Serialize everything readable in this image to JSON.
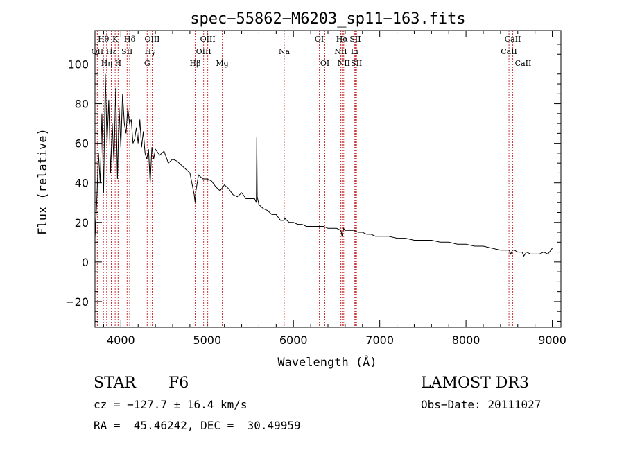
{
  "chart_data": {
    "type": "line",
    "title": "spec−55862−M6203_sp11−163.fits",
    "xlabel": "Wavelength (Å)",
    "ylabel": "Flux (relative)",
    "xlim": [
      3700,
      9100
    ],
    "ylim": [
      -33,
      117
    ],
    "xticks": [
      4000,
      5000,
      6000,
      7000,
      8000,
      9000
    ],
    "yticks": [
      -20,
      0,
      20,
      40,
      60,
      80,
      100
    ],
    "ytick_labels": [
      "−20",
      "0",
      "20",
      "40",
      "60",
      "80",
      "100"
    ],
    "series": [
      {
        "name": "spectrum",
        "x": [
          3700,
          3720,
          3740,
          3760,
          3780,
          3800,
          3820,
          3840,
          3860,
          3880,
          3900,
          3920,
          3940,
          3960,
          3980,
          4000,
          4020,
          4040,
          4060,
          4080,
          4100,
          4120,
          4140,
          4160,
          4180,
          4200,
          4220,
          4240,
          4260,
          4280,
          4300,
          4320,
          4340,
          4360,
          4380,
          4400,
          4450,
          4500,
          4550,
          4600,
          4650,
          4700,
          4750,
          4800,
          4850,
          4860,
          4870,
          4900,
          4950,
          5000,
          5050,
          5100,
          5150,
          5200,
          5250,
          5300,
          5350,
          5400,
          5450,
          5500,
          5550,
          5570,
          5575,
          5580,
          5600,
          5650,
          5700,
          5750,
          5800,
          5850,
          5890,
          5900,
          5950,
          6000,
          6050,
          6100,
          6150,
          6200,
          6250,
          6300,
          6350,
          6400,
          6450,
          6500,
          6550,
          6563,
          6580,
          6600,
          6650,
          6700,
          6750,
          6800,
          6850,
          6870,
          6900,
          6950,
          7000,
          7100,
          7200,
          7300,
          7400,
          7500,
          7600,
          7700,
          7800,
          7900,
          8000,
          8100,
          8200,
          8300,
          8400,
          8500,
          8520,
          8540,
          8560,
          8600,
          8650,
          8670,
          8700,
          8750,
          8800,
          8850,
          8900,
          8950,
          9000
        ],
        "y": [
          12,
          30,
          55,
          40,
          75,
          35,
          95,
          60,
          82,
          45,
          70,
          50,
          88,
          42,
          78,
          58,
          85,
          70,
          65,
          78,
          70,
          72,
          60,
          62,
          68,
          60,
          72,
          58,
          66,
          55,
          52,
          57,
          40,
          58,
          52,
          57,
          54,
          56,
          50,
          52,
          51,
          49,
          47,
          45,
          34,
          30,
          36,
          44,
          42,
          42,
          41,
          38,
          36,
          39,
          37,
          34,
          33,
          35,
          32,
          32,
          32,
          30,
          63,
          33,
          29,
          27,
          26,
          24,
          24,
          21,
          21,
          22,
          20,
          20,
          19,
          19,
          18,
          18,
          18,
          18,
          18,
          17,
          17,
          17,
          16,
          13,
          17,
          16,
          16,
          16,
          15,
          15,
          14,
          14,
          14,
          13,
          13,
          13,
          12,
          12,
          11,
          11,
          11,
          10,
          10,
          9,
          9,
          8,
          8,
          7,
          6,
          6,
          4,
          6,
          6,
          5,
          5,
          3,
          5,
          4,
          4,
          4,
          5,
          4,
          7
        ]
      }
    ],
    "spectral_lines": [
      {
        "label": "Hθ",
        "x": 3798,
        "row": 1
      },
      {
        "label": "K",
        "x": 3934,
        "row": 1
      },
      {
        "label": "Hδ",
        "x": 4102,
        "row": 1
      },
      {
        "label": "OIII",
        "x": 4363,
        "row": 1
      },
      {
        "label": "OIII",
        "x": 5007,
        "row": 1
      },
      {
        "label": "OI",
        "x": 6300,
        "row": 1
      },
      {
        "label": "Hα",
        "x": 6563,
        "row": 1
      },
      {
        "label": "SII",
        "x": 6717,
        "row": 1
      },
      {
        "label": "CaII",
        "x": 8542,
        "row": 1
      },
      {
        "label": "OII",
        "x": 3727,
        "row": 2
      },
      {
        "label": "Hε",
        "x": 3889,
        "row": 2
      },
      {
        "label": "SII",
        "x": 4072,
        "row": 2
      },
      {
        "label": "Hγ",
        "x": 4340,
        "row": 2
      },
      {
        "label": "OIII",
        "x": 4959,
        "row": 2
      },
      {
        "label": "Na",
        "x": 5893,
        "row": 2
      },
      {
        "label": "NII",
        "x": 6548,
        "row": 2
      },
      {
        "label": "Li",
        "x": 6708,
        "row": 2
      },
      {
        "label": "CaII",
        "x": 8498,
        "row": 2
      },
      {
        "label": "Hη",
        "x": 3835,
        "row": 3
      },
      {
        "label": "H",
        "x": 3968,
        "row": 3
      },
      {
        "label": "G",
        "x": 4305,
        "row": 3
      },
      {
        "label": "Hβ",
        "x": 4861,
        "row": 3
      },
      {
        "label": "Mg",
        "x": 5175,
        "row": 3
      },
      {
        "label": "OI",
        "x": 6364,
        "row": 3
      },
      {
        "label": "NII",
        "x": 6583,
        "row": 3
      },
      {
        "label": "SII",
        "x": 6731,
        "row": 3
      },
      {
        "label": "CaII",
        "x": 8662,
        "row": 3
      }
    ]
  },
  "info": {
    "object_class": "STAR",
    "subclass": "F6",
    "survey": "LAMOST DR3",
    "cz": "cz = −127.7 ± 16.4 km/s",
    "obs_date": "Obs−Date: 20111027",
    "radec": "RA =  45.46242, DEC =  30.49959"
  },
  "colors": {
    "line": "#000000",
    "marker": "#cc3333"
  }
}
